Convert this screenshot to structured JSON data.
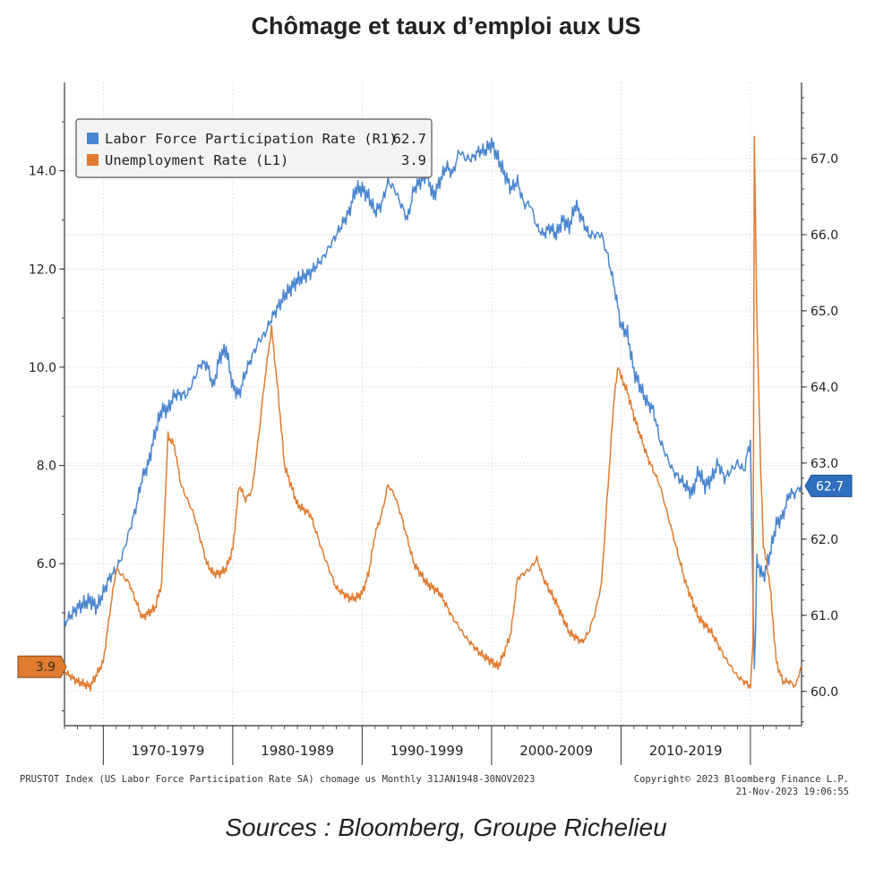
{
  "page": {
    "title": "Chômage et taux d’emploi aux US",
    "source": "Sources : Bloomberg, Groupe Richelieu"
  },
  "chart_data": {
    "type": "line",
    "x_axis": {
      "range": [
        "1967-01",
        "2023-11"
      ],
      "decades": [
        {
          "label": "1970-1979",
          "start": "1970",
          "end": "1980"
        },
        {
          "label": "1980-1989",
          "start": "1980",
          "end": "1990"
        },
        {
          "label": "1990-1999",
          "start": "1990",
          "end": "2000"
        },
        {
          "label": "2000-2009",
          "start": "2000",
          "end": "2010"
        },
        {
          "label": "2010-2019",
          "start": "2010",
          "end": "2020"
        }
      ]
    },
    "left_axis": {
      "ticks": [
        "6.0",
        "8.0",
        "10.0",
        "12.0",
        "14.0"
      ],
      "range": [
        2.7,
        15.8
      ]
    },
    "right_axis": {
      "ticks": [
        "60.0",
        "61.0",
        "62.0",
        "63.0",
        "64.0",
        "65.0",
        "66.0",
        "67.0"
      ],
      "range": [
        59.55,
        68.0
      ]
    },
    "grid": true,
    "legend": {
      "placement": "top-left",
      "entries": [
        {
          "label": "Labor Force Participation Rate (R1)",
          "value": "62.7",
          "color": "#4a86cf"
        },
        {
          "label": "Unemployment Rate (L1)",
          "value": "3.9",
          "color": "#e07b30"
        }
      ]
    },
    "last_value_tags": [
      {
        "text": "3.9",
        "side": "left",
        "value": 3.9,
        "color": "#e07b30"
      },
      {
        "text": "62.7",
        "side": "right",
        "value": 62.7,
        "color": "#2f6fc0"
      }
    ],
    "series": [
      {
        "name": "Labor Force Participation Rate (R1)",
        "axis": "right",
        "color": "#4a86cf",
        "x": [
          1967.0,
          1968.0,
          1969.0,
          1969.5,
          1970.0,
          1970.5,
          1971.0,
          1971.5,
          1972.0,
          1972.5,
          1973.0,
          1973.5,
          1974.0,
          1974.5,
          1975.0,
          1975.5,
          1976.0,
          1976.5,
          1977.0,
          1977.5,
          1978.0,
          1978.5,
          1979.0,
          1979.5,
          1980.0,
          1980.5,
          1981.0,
          1981.5,
          1982.0,
          1982.5,
          1983.0,
          1984.0,
          1985.0,
          1986.0,
          1987.0,
          1988.0,
          1989.0,
          1989.5,
          1990.0,
          1990.5,
          1991.0,
          1991.5,
          1992.0,
          1992.5,
          1993.0,
          1993.5,
          1994.0,
          1994.5,
          1995.0,
          1995.5,
          1996.0,
          1996.5,
          1997.0,
          1997.5,
          1998.0,
          1998.5,
          1999.0,
          1999.5,
          2000.0,
          2000.5,
          2001.0,
          2001.5,
          2002.0,
          2002.5,
          2003.0,
          2003.5,
          2004.0,
          2004.5,
          2005.0,
          2005.5,
          2006.0,
          2006.5,
          2007.0,
          2007.5,
          2008.0,
          2008.5,
          2009.0,
          2009.5,
          2010.0,
          2010.5,
          2011.0,
          2011.5,
          2012.0,
          2012.5,
          2013.0,
          2013.5,
          2014.0,
          2014.5,
          2015.0,
          2015.5,
          2016.0,
          2016.5,
          2017.0,
          2017.5,
          2018.0,
          2018.5,
          2019.0,
          2019.5,
          2020.0,
          2020.3,
          2020.5,
          2021.0,
          2021.5,
          2022.0,
          2022.5,
          2023.0,
          2023.5,
          2023.9
        ],
        "y": [
          60.9,
          61.1,
          61.2,
          61.1,
          61.3,
          61.5,
          61.6,
          61.8,
          62.1,
          62.4,
          62.8,
          63.0,
          63.4,
          63.7,
          63.7,
          63.9,
          63.9,
          63.9,
          64.1,
          64.3,
          64.3,
          64.0,
          64.4,
          64.5,
          64.0,
          63.9,
          64.2,
          64.4,
          64.6,
          64.7,
          64.9,
          65.2,
          65.4,
          65.5,
          65.7,
          66.0,
          66.3,
          66.6,
          66.6,
          66.5,
          66.3,
          66.4,
          66.7,
          66.6,
          66.4,
          66.2,
          66.6,
          66.7,
          66.8,
          66.5,
          66.7,
          66.9,
          66.8,
          67.1,
          67.0,
          67.0,
          67.1,
          67.1,
          67.2,
          67.0,
          66.8,
          66.6,
          66.7,
          66.4,
          66.4,
          66.1,
          66.0,
          66.1,
          66.0,
          66.2,
          66.1,
          66.4,
          66.2,
          66.0,
          66.0,
          66.0,
          65.7,
          65.3,
          64.8,
          64.7,
          64.2,
          64.0,
          63.8,
          63.7,
          63.3,
          63.1,
          62.9,
          62.8,
          62.7,
          62.6,
          62.9,
          62.7,
          62.8,
          63.0,
          62.8,
          62.9,
          63.0,
          62.9,
          63.3,
          60.2,
          61.7,
          61.5,
          61.8,
          62.2,
          62.3,
          62.6,
          62.6,
          62.7
        ]
      },
      {
        "name": "Unemployment Rate (L1)",
        "axis": "left",
        "color": "#e07b30",
        "x": [
          1967.0,
          1968.0,
          1969.0,
          1970.0,
          1970.5,
          1971.0,
          1972.0,
          1973.0,
          1974.0,
          1974.5,
          1975.0,
          1975.5,
          1976.0,
          1977.0,
          1978.0,
          1978.5,
          1979.0,
          1979.5,
          1980.0,
          1980.5,
          1981.0,
          1981.5,
          1982.0,
          1982.5,
          1983.0,
          1983.5,
          1984.0,
          1985.0,
          1986.0,
          1987.0,
          1988.0,
          1989.0,
          1989.5,
          1990.0,
          1990.5,
          1991.0,
          1991.5,
          1992.0,
          1992.5,
          1993.0,
          1994.0,
          1995.0,
          1996.0,
          1997.0,
          1998.0,
          1999.0,
          2000.0,
          2000.5,
          2001.0,
          2001.5,
          2002.0,
          2002.5,
          2003.0,
          2003.5,
          2004.0,
          2005.0,
          2006.0,
          2007.0,
          2007.5,
          2008.0,
          2008.5,
          2009.0,
          2009.5,
          2009.8,
          2010.0,
          2010.5,
          2011.0,
          2012.0,
          2013.0,
          2014.0,
          2015.0,
          2016.0,
          2017.0,
          2018.0,
          2019.0,
          2019.5,
          2020.0,
          2020.2,
          2020.3,
          2020.5,
          2020.8,
          2021.0,
          2021.5,
          2022.0,
          2022.5,
          2023.0,
          2023.5,
          2023.9
        ],
        "y": [
          3.8,
          3.6,
          3.5,
          4.0,
          5.0,
          5.9,
          5.6,
          4.9,
          5.1,
          5.6,
          8.6,
          8.4,
          7.6,
          7.0,
          6.0,
          5.8,
          5.8,
          5.9,
          6.3,
          7.6,
          7.3,
          7.5,
          8.6,
          9.8,
          10.8,
          9.5,
          8.0,
          7.2,
          7.0,
          6.2,
          5.5,
          5.3,
          5.3,
          5.4,
          5.8,
          6.6,
          7.0,
          7.6,
          7.4,
          7.0,
          6.0,
          5.6,
          5.4,
          4.9,
          4.5,
          4.2,
          4.0,
          3.9,
          4.2,
          4.6,
          5.7,
          5.8,
          5.9,
          6.1,
          5.7,
          5.2,
          4.6,
          4.4,
          4.6,
          5.0,
          5.6,
          7.6,
          9.5,
          10.0,
          9.8,
          9.5,
          9.0,
          8.2,
          7.6,
          6.6,
          5.6,
          4.9,
          4.6,
          4.1,
          3.7,
          3.6,
          3.5,
          4.4,
          14.7,
          11.0,
          7.9,
          6.4,
          5.6,
          4.0,
          3.6,
          3.6,
          3.5,
          3.9
        ]
      }
    ]
  },
  "footer": {
    "left": "PRUSTOT Index (US Labor Force Participation Rate SA) chomage us  Monthly 31JAN1948-30NOV2023",
    "right_1": "Copyright© 2023 Bloomberg Finance L.P.",
    "right_2": "21-Nov-2023 19:06:55"
  }
}
